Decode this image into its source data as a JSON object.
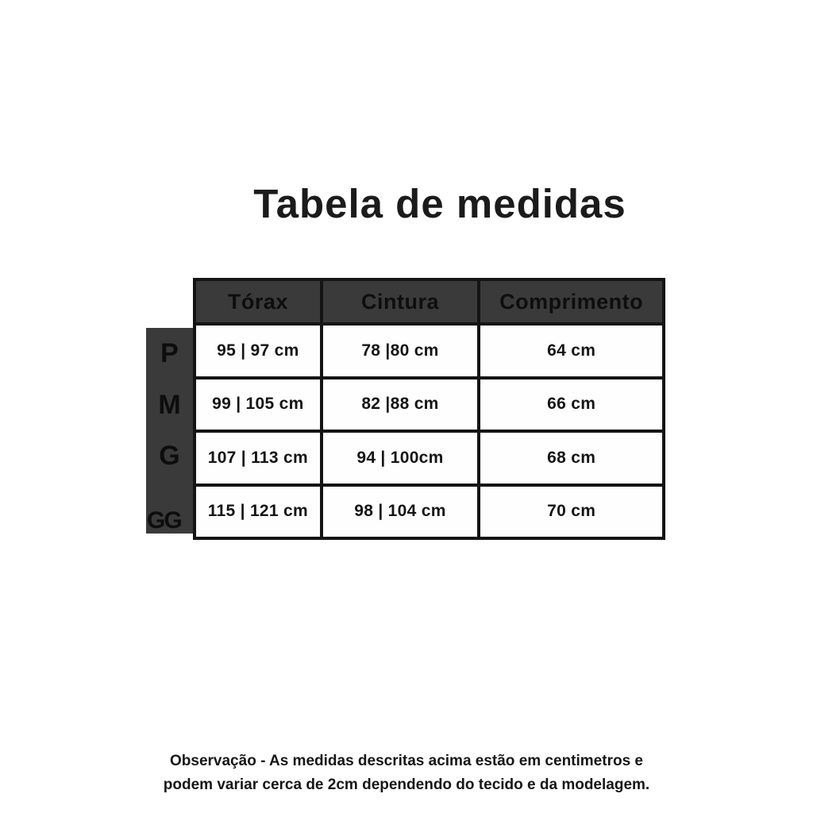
{
  "page": {
    "title": "Tabela de medidas",
    "note": {
      "line1": "Observação - As medidas descritas acima estão em centimetros e",
      "line2": "podem variar cerca de 2cm dependendo do tecido e da modelagem."
    }
  },
  "size_table": {
    "columns": [
      "Tórax",
      "Cintura",
      "Comprimento"
    ],
    "rows": [
      {
        "size": "P",
        "torax": "95 | 97 cm",
        "cintura": "78 |80 cm",
        "comprimento": "64 cm"
      },
      {
        "size": "M",
        "torax": "99 | 105 cm",
        "cintura": "82 |88 cm",
        "comprimento": "66 cm"
      },
      {
        "size": "G",
        "torax": "107 | 113 cm",
        "cintura": "94 | 100cm",
        "comprimento": "68 cm"
      },
      {
        "size": "GG",
        "torax": "115 | 121 cm",
        "cintura": "98 | 104 cm",
        "comprimento": "70 cm"
      }
    ]
  },
  "colors": {
    "header_bg": "#3a3a3a",
    "grid_border": "#141414",
    "cell_bg": "#fefefe",
    "text": "#141414"
  }
}
